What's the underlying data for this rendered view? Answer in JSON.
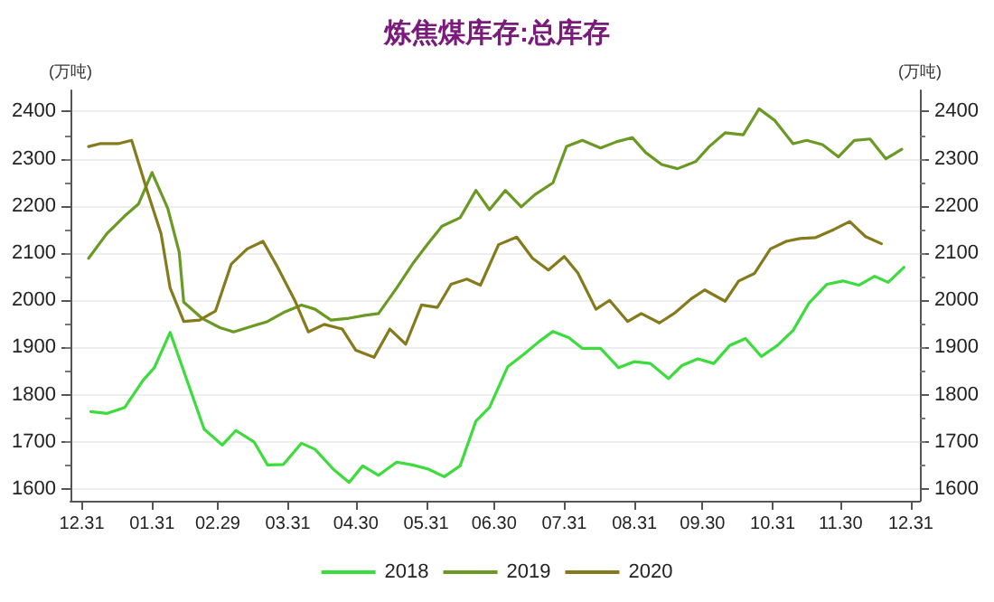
{
  "chart_data": {
    "type": "line",
    "title": "炼焦煤库存:总库存",
    "ylabel": "(万吨)",
    "y2label": "(万吨)",
    "xlim": [
      "2019-12-26",
      "2021-01-04"
    ],
    "xticks": [
      {
        "value": "2019-12-31",
        "label": "12.31"
      },
      {
        "value": "2020-01-31",
        "label": "01.31"
      },
      {
        "value": "2020-02-29",
        "label": "02.29"
      },
      {
        "value": "2020-03-31",
        "label": "03.31"
      },
      {
        "value": "2020-04-30",
        "label": "04.30"
      },
      {
        "value": "2020-05-31",
        "label": "05.31"
      },
      {
        "value": "2020-06-30",
        "label": "06.30"
      },
      {
        "value": "2020-07-31",
        "label": "07.31"
      },
      {
        "value": "2020-08-31",
        "label": "08.31"
      },
      {
        "value": "2020-09-30",
        "label": "09.30"
      },
      {
        "value": "2020-10-31",
        "label": "10.31"
      },
      {
        "value": "2020-11-30",
        "label": "11.30"
      },
      {
        "value": "2020-12-31",
        "label": "12.31"
      }
    ],
    "ylim": [
      1575,
      2445
    ],
    "yticks": [
      1600,
      1700,
      1800,
      1900,
      2000,
      2100,
      2200,
      2300,
      2400
    ],
    "y2lim": [
      1575,
      2445
    ],
    "y2ticks": [
      1600,
      1700,
      1800,
      1900,
      2000,
      2100,
      2200,
      2300,
      2400
    ],
    "grid": "y",
    "legend": "bottom",
    "marker": "none",
    "line_style": "solid",
    "series": [
      {
        "name": "2018",
        "color": "#3ddc3d",
        "x": [
          "2020-01-04",
          "2020-01-11",
          "2020-01-19",
          "2020-01-27",
          "2020-02-01",
          "2020-02-08",
          "2020-02-23",
          "2020-03-02",
          "2020-03-08",
          "2020-03-16",
          "2020-03-22",
          "2020-03-29",
          "2020-04-06",
          "2020-04-12",
          "2020-04-20",
          "2020-04-27",
          "2020-05-03",
          "2020-05-10",
          "2020-05-18",
          "2020-05-25",
          "2020-06-01",
          "2020-06-08",
          "2020-06-15",
          "2020-06-22",
          "2020-06-28",
          "2020-07-06",
          "2020-07-13",
          "2020-07-20",
          "2020-07-26",
          "2020-08-02",
          "2020-08-08",
          "2020-08-16",
          "2020-08-24",
          "2020-08-31",
          "2020-09-07",
          "2020-09-15",
          "2020-09-21",
          "2020-09-28",
          "2020-10-05",
          "2020-10-12",
          "2020-10-19",
          "2020-10-26",
          "2020-11-02",
          "2020-11-09",
          "2020-11-16",
          "2020-11-24",
          "2020-12-01",
          "2020-12-08",
          "2020-12-15",
          "2020-12-21",
          "2020-12-28"
        ],
        "values": [
          1764,
          1760,
          1773,
          1830,
          1857,
          1932,
          1727,
          1693,
          1724,
          1700,
          1651,
          1652,
          1697,
          1684,
          1642,
          1614,
          1649,
          1629,
          1657,
          1651,
          1642,
          1626,
          1649,
          1744,
          1773,
          1859,
          1885,
          1913,
          1934,
          1921,
          1898,
          1898,
          1857,
          1870,
          1866,
          1834,
          1862,
          1876,
          1866,
          1904,
          1919,
          1881,
          1904,
          1936,
          1994,
          2034,
          2041,
          2032,
          2051,
          2038,
          2070
        ]
      },
      {
        "name": "2019",
        "color": "#6a9a24",
        "x": [
          "2020-01-03",
          "2020-01-11",
          "2020-01-19",
          "2020-01-25",
          "2020-01-31",
          "2020-02-07",
          "2020-02-12",
          "2020-02-14",
          "2020-02-22",
          "2020-03-01",
          "2020-03-07",
          "2020-03-15",
          "2020-03-22",
          "2020-03-29",
          "2020-04-06",
          "2020-04-12",
          "2020-04-19",
          "2020-04-27",
          "2020-05-04",
          "2020-05-10",
          "2020-05-18",
          "2020-05-25",
          "2020-06-01",
          "2020-06-07",
          "2020-06-15",
          "2020-06-22",
          "2020-06-28",
          "2020-07-05",
          "2020-07-12",
          "2020-07-18",
          "2020-07-26",
          "2020-08-01",
          "2020-08-08",
          "2020-08-16",
          "2020-08-23",
          "2020-08-30",
          "2020-09-05",
          "2020-09-12",
          "2020-09-19",
          "2020-09-27",
          "2020-10-03",
          "2020-10-10",
          "2020-10-18",
          "2020-10-25",
          "2020-11-01",
          "2020-11-09",
          "2020-11-15",
          "2020-11-22",
          "2020-11-29",
          "2020-12-06",
          "2020-12-13",
          "2020-12-20",
          "2020-12-27"
        ],
        "values": [
          2089,
          2141,
          2179,
          2204,
          2271,
          2194,
          2102,
          1996,
          1962,
          1942,
          1933,
          1945,
          1955,
          1974,
          1990,
          1981,
          1958,
          1962,
          1968,
          1972,
          2026,
          2077,
          2121,
          2157,
          2175,
          2233,
          2192,
          2233,
          2198,
          2224,
          2249,
          2326,
          2339,
          2323,
          2336,
          2345,
          2313,
          2288,
          2279,
          2294,
          2326,
          2355,
          2351,
          2406,
          2381,
          2332,
          2339,
          2330,
          2304,
          2339,
          2342,
          2300,
          2320
        ]
      },
      {
        "name": "2020",
        "color": "#857a1c",
        "x": [
          "2020-01-03",
          "2020-01-08",
          "2020-01-16",
          "2020-01-22",
          "2020-01-29",
          "2020-02-04",
          "2020-02-08",
          "2020-02-14",
          "2020-02-21",
          "2020-02-28",
          "2020-03-06",
          "2020-03-13",
          "2020-03-20",
          "2020-03-26",
          "2020-04-03",
          "2020-04-09",
          "2020-04-16",
          "2020-04-24",
          "2020-04-30",
          "2020-05-08",
          "2020-05-15",
          "2020-05-22",
          "2020-05-29",
          "2020-06-05",
          "2020-06-11",
          "2020-06-18",
          "2020-06-24",
          "2020-07-02",
          "2020-07-10",
          "2020-07-17",
          "2020-07-24",
          "2020-07-31",
          "2020-08-06",
          "2020-08-14",
          "2020-08-20",
          "2020-08-28",
          "2020-09-03",
          "2020-09-11",
          "2020-09-18",
          "2020-09-25",
          "2020-10-01",
          "2020-10-10",
          "2020-10-16",
          "2020-10-23",
          "2020-10-30",
          "2020-11-06",
          "2020-11-12",
          "2020-11-19",
          "2020-11-27",
          "2020-12-04",
          "2020-12-11",
          "2020-12-18"
        ],
        "values": [
          2326,
          2332,
          2332,
          2339,
          2230,
          2141,
          2026,
          1955,
          1958,
          1977,
          2077,
          2109,
          2125,
          2074,
          2000,
          1933,
          1949,
          1939,
          1894,
          1879,
          1939,
          1907,
          1990,
          1985,
          2034,
          2045,
          2032,
          2118,
          2134,
          2089,
          2064,
          2093,
          2058,
          1981,
          2000,
          1955,
          1972,
          1952,
          1974,
          2003,
          2022,
          1998,
          2041,
          2057,
          2109,
          2125,
          2131,
          2133,
          2150,
          2167,
          2135,
          2120
        ]
      }
    ]
  }
}
